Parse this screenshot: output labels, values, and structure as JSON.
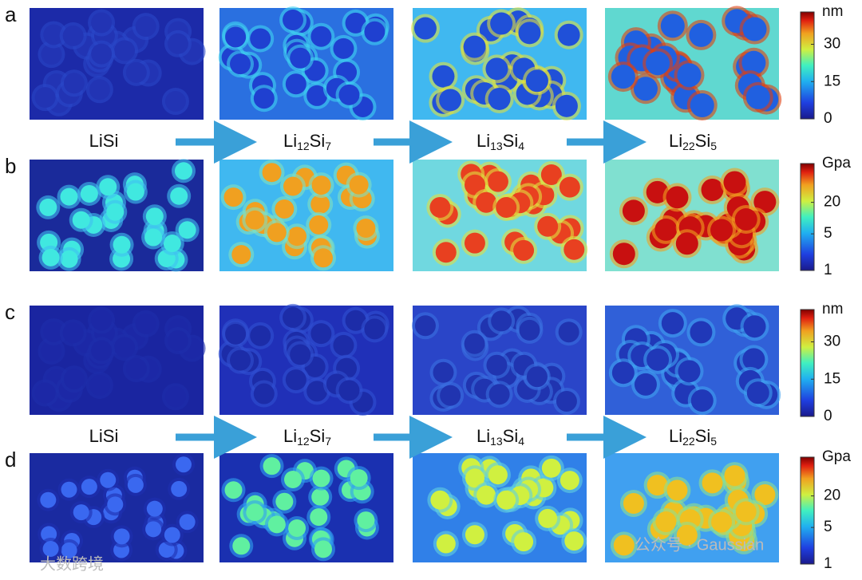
{
  "panels": [
    {
      "label": "a",
      "colorbar": {
        "unit": "nm",
        "lim": [
          0,
          43
        ],
        "ticks": [
          0,
          15,
          30
        ]
      }
    },
    {
      "label": "b",
      "colorbar": {
        "unit": "Gpa",
        "scale": "log",
        "lim": [
          1,
          110
        ],
        "ticks": [
          1,
          5,
          20
        ]
      }
    },
    {
      "label": "c",
      "colorbar": {
        "unit": "nm",
        "lim": [
          0,
          43
        ],
        "ticks": [
          0,
          15,
          30
        ]
      }
    },
    {
      "label": "d",
      "colorbar": {
        "unit": "Gpa",
        "scale": "log",
        "lim": [
          1,
          110
        ],
        "ticks": [
          1,
          5,
          20
        ]
      }
    }
  ],
  "phase_rows": [
    [
      [
        "LiSi"
      ],
      [
        "Li",
        "12",
        "Si",
        "7"
      ],
      [
        "Li",
        "13",
        "Si",
        "4"
      ],
      [
        "Li",
        "22",
        "Si",
        "5"
      ]
    ],
    [
      [
        "LiSi"
      ],
      [
        "Li",
        "12",
        "Si",
        "7"
      ],
      [
        "Li",
        "13",
        "Si",
        "4"
      ],
      [
        "Li",
        "22",
        "Si",
        "5"
      ]
    ]
  ],
  "watermark": [
    "公众号 · Gaussian",
    "大数跨境"
  ]
}
